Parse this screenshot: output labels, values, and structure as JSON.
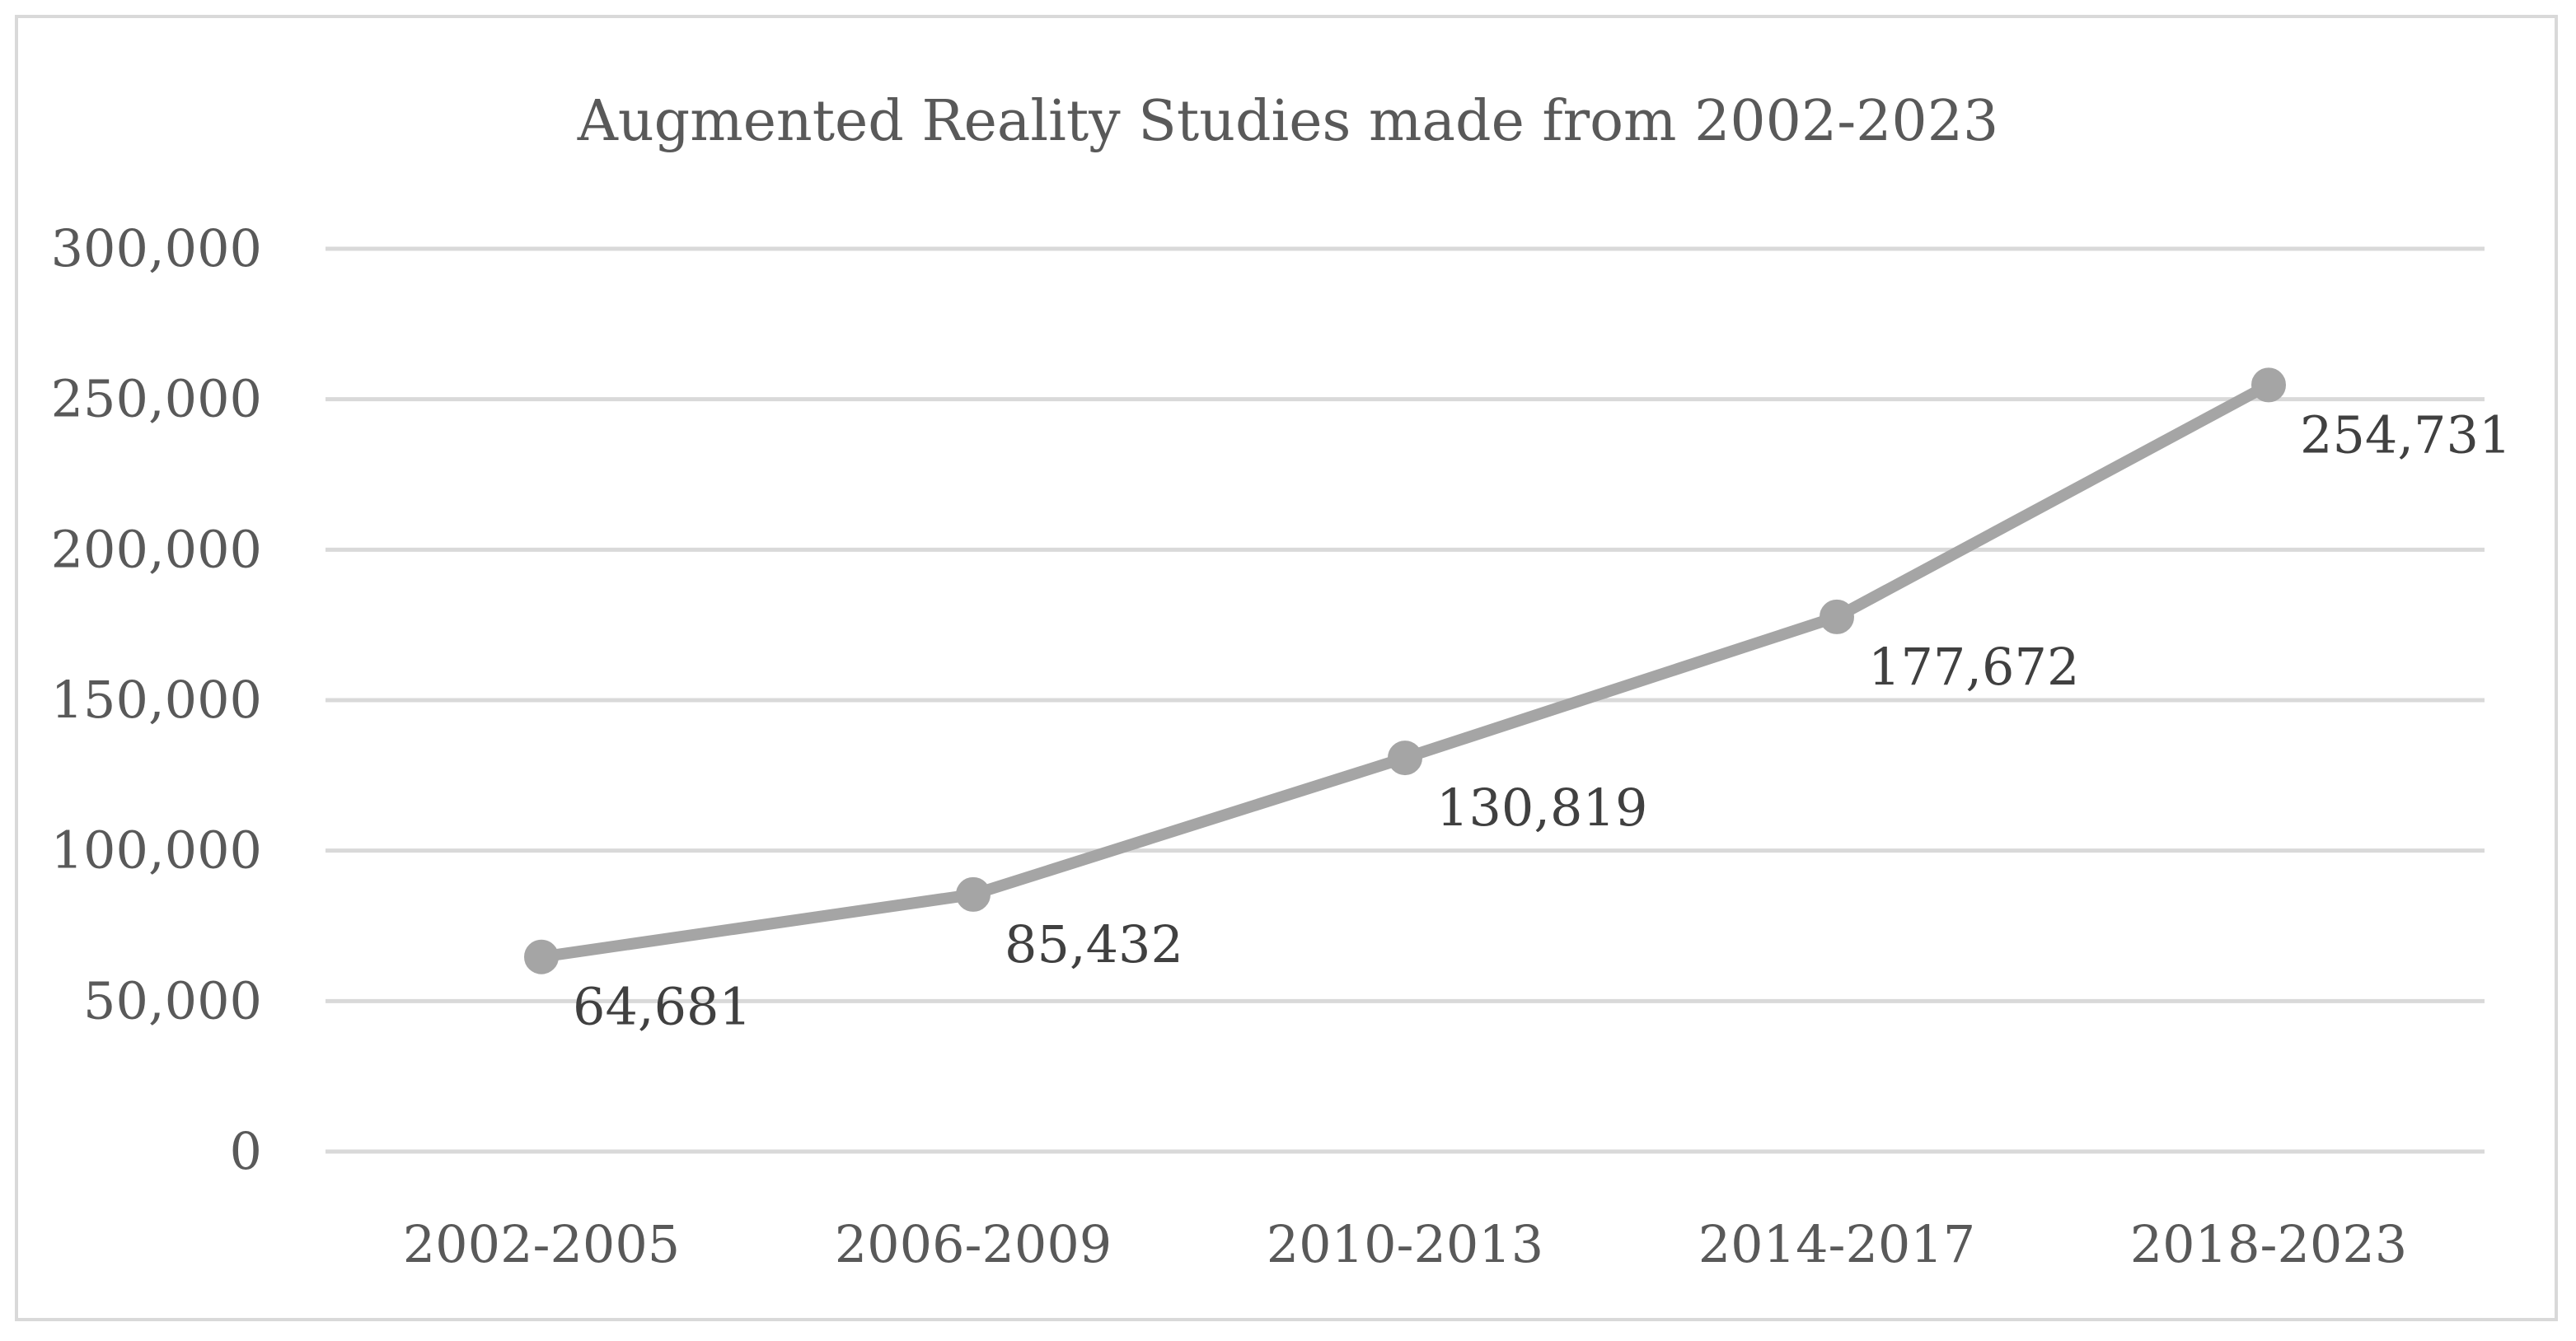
{
  "chart_data": {
    "type": "line",
    "title": "Augmented Reality Studies made from 2002-2023",
    "categories": [
      "2002-2005",
      "2006-2009",
      "2010-2013",
      "2014-2017",
      "2018-2023"
    ],
    "series": [
      {
        "name": "Studies",
        "values": [
          64681,
          85432,
          130819,
          177672,
          254731
        ],
        "labels": [
          "64,681",
          "85,432",
          "130,819",
          "177,672",
          "254,731"
        ]
      }
    ],
    "ylim": [
      0,
      300000
    ],
    "yticks": [
      0,
      50000,
      100000,
      150000,
      200000,
      250000,
      300000
    ],
    "ytick_labels": [
      "0",
      "50,000",
      "100,000",
      "150,000",
      "200,000",
      "250,000",
      "300,000"
    ],
    "xlabel": "",
    "ylabel": "",
    "grid": true,
    "legend": "none",
    "colors": {
      "line": "#a5a5a5",
      "grid": "#d9d9d9",
      "axis_text": "#595959",
      "label_text": "#404040"
    }
  }
}
